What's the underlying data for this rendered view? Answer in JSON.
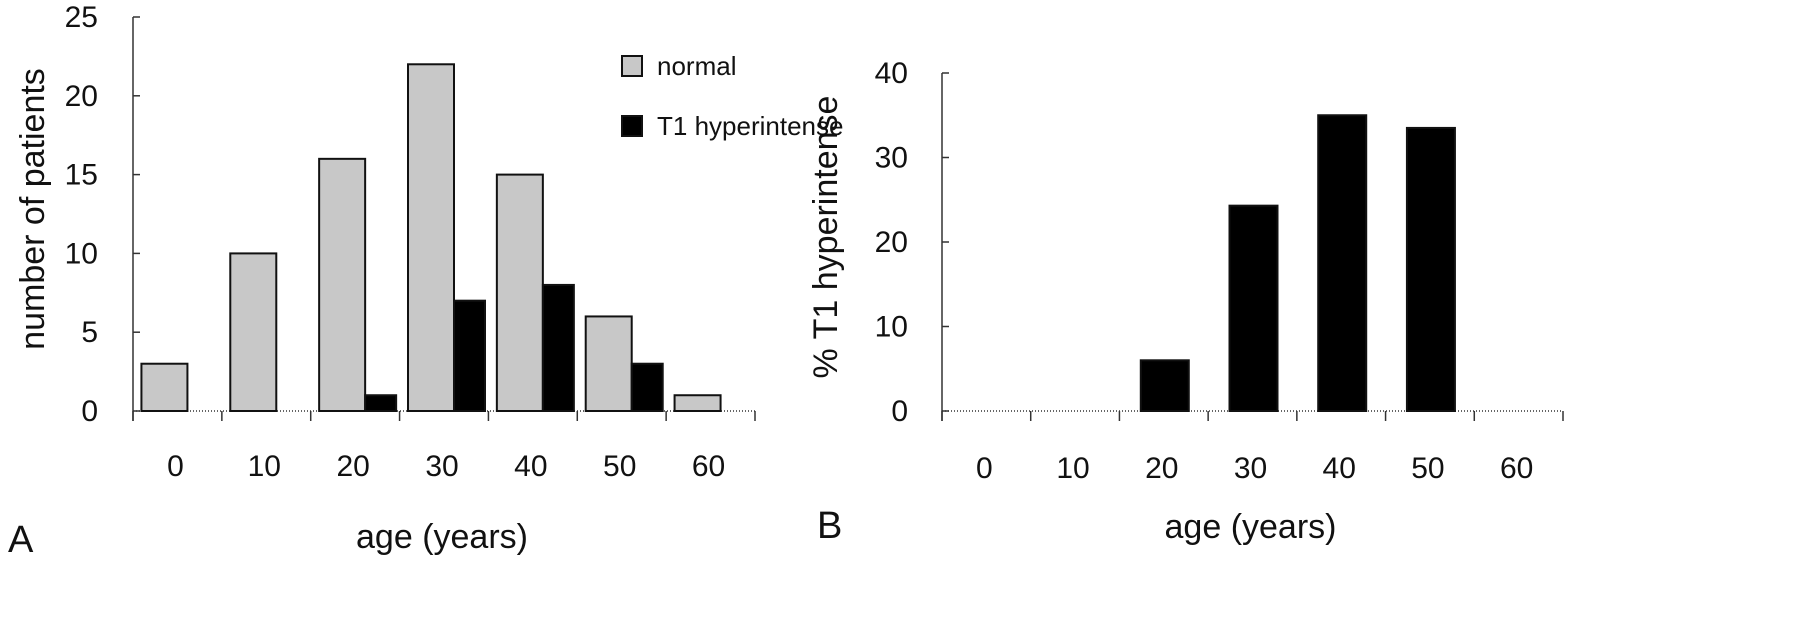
{
  "colors": {
    "normal": "#c8c8c8",
    "t1_hyperintense": "#000000",
    "axis": "#333333"
  },
  "chart_data": [
    {
      "type": "bar",
      "panel": "A",
      "categories": [
        "0",
        "10",
        "20",
        "30",
        "40",
        "50",
        "60"
      ],
      "series": [
        {
          "name": "normal",
          "values": [
            3,
            10,
            16,
            22,
            15,
            6,
            1
          ]
        },
        {
          "name": "T1 hyperintense",
          "values": [
            0,
            0,
            1,
            7,
            8,
            3,
            0
          ]
        }
      ],
      "xlabel": "age (years)",
      "ylabel": "number of patients",
      "ylim": [
        0,
        25
      ],
      "yticks": [
        "0",
        "5",
        "10",
        "15",
        "20",
        "25"
      ],
      "legend": {
        "position": "top-right",
        "entries": [
          "normal",
          "T1 hyperintense"
        ]
      },
      "grid": false
    },
    {
      "type": "bar",
      "panel": "B",
      "categories": [
        "0",
        "10",
        "20",
        "30",
        "40",
        "50",
        "60"
      ],
      "series": [
        {
          "values": [
            0,
            0,
            6,
            24.3,
            35,
            33.5,
            0
          ]
        }
      ],
      "xlabel": "age (years)",
      "ylabel": "% T1 hyperintense",
      "ylim": [
        0,
        40
      ],
      "yticks": [
        "0",
        "10",
        "20",
        "30",
        "40"
      ],
      "grid": false
    }
  ]
}
